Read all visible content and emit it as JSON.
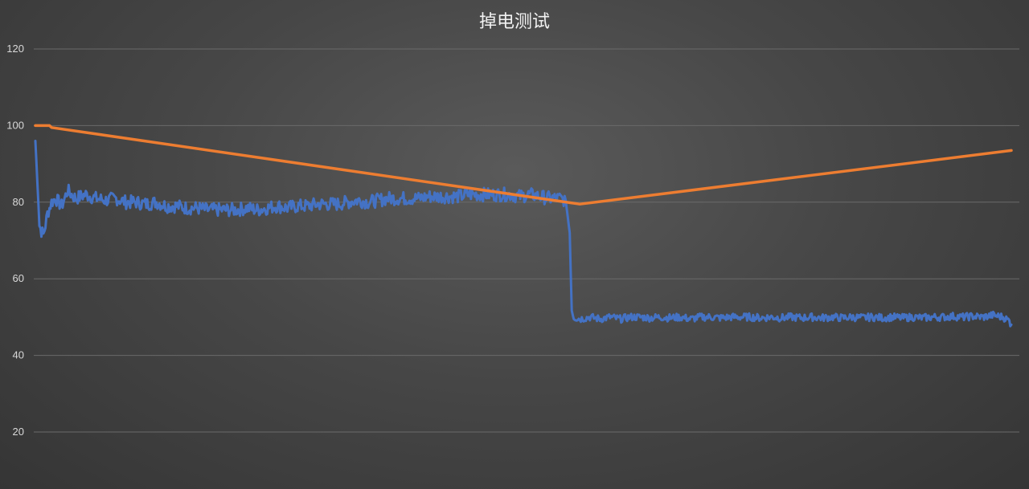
{
  "chart_data": {
    "type": "line",
    "title": "掉电测试",
    "xlabel": "",
    "ylabel": "",
    "ylim": [
      20,
      120
    ],
    "yticks": [
      20,
      40,
      60,
      80,
      100,
      120
    ],
    "grid": true,
    "legend": "none",
    "x_label_note": "no x-axis labels shown",
    "series": [
      {
        "color": "#4472c4",
        "points": [
          [
            0,
            96
          ],
          [
            2,
            74
          ],
          [
            3,
            72.5
          ],
          [
            4,
            71.5
          ],
          [
            5,
            74
          ],
          [
            6,
            77
          ],
          [
            8,
            80
          ],
          [
            10,
            81
          ],
          [
            13,
            79
          ],
          [
            16,
            83
          ],
          [
            20,
            81
          ],
          [
            25,
            82
          ],
          [
            30,
            81
          ],
          [
            35,
            80.5
          ],
          [
            40,
            81
          ],
          [
            45,
            80
          ],
          [
            50,
            80
          ],
          [
            55,
            79.5
          ],
          [
            60,
            80
          ],
          [
            65,
            79
          ],
          [
            70,
            79
          ],
          [
            75,
            78.5
          ],
          [
            80,
            78.5
          ],
          [
            85,
            78
          ],
          [
            90,
            78
          ],
          [
            95,
            78
          ],
          [
            100,
            78
          ],
          [
            105,
            78.5
          ],
          [
            110,
            78
          ],
          [
            115,
            78.5
          ],
          [
            120,
            79
          ],
          [
            125,
            78.5
          ],
          [
            130,
            79
          ],
          [
            135,
            79
          ],
          [
            140,
            79.5
          ],
          [
            145,
            79.5
          ],
          [
            150,
            79.5
          ],
          [
            155,
            80
          ],
          [
            160,
            80.5
          ],
          [
            165,
            80
          ],
          [
            170,
            80.5
          ],
          [
            175,
            81
          ],
          [
            180,
            81
          ],
          [
            185,
            81
          ],
          [
            190,
            81
          ],
          [
            195,
            81.5
          ],
          [
            200,
            81.5
          ],
          [
            205,
            81.5
          ],
          [
            210,
            81.5
          ],
          [
            215,
            82
          ],
          [
            220,
            82
          ],
          [
            225,
            82
          ],
          [
            230,
            82
          ],
          [
            235,
            82
          ],
          [
            240,
            81.5
          ],
          [
            245,
            82
          ],
          [
            250,
            81.5
          ],
          [
            255,
            81
          ],
          [
            260,
            81
          ],
          [
            263,
            80.5
          ],
          [
            265,
            72
          ],
          [
            266,
            52
          ],
          [
            267,
            50
          ],
          [
            270,
            49.5
          ],
          [
            275,
            50
          ],
          [
            280,
            49.5
          ],
          [
            285,
            50
          ],
          [
            290,
            49.5
          ],
          [
            295,
            50
          ],
          [
            300,
            50
          ],
          [
            305,
            49.8
          ],
          [
            310,
            50
          ],
          [
            315,
            49.8
          ],
          [
            320,
            50
          ],
          [
            325,
            49.5
          ],
          [
            330,
            50
          ],
          [
            335,
            50
          ],
          [
            340,
            49.8
          ],
          [
            345,
            50
          ],
          [
            350,
            50
          ],
          [
            355,
            50
          ],
          [
            360,
            49.8
          ],
          [
            365,
            50
          ],
          [
            370,
            49.8
          ],
          [
            375,
            50
          ],
          [
            380,
            49.8
          ],
          [
            385,
            50
          ],
          [
            390,
            49.8
          ],
          [
            395,
            50
          ],
          [
            400,
            49.8
          ],
          [
            405,
            50
          ],
          [
            410,
            49.8
          ],
          [
            415,
            50
          ],
          [
            420,
            49.8
          ],
          [
            425,
            50
          ],
          [
            430,
            49.8
          ],
          [
            435,
            50
          ],
          [
            440,
            49.8
          ],
          [
            445,
            50
          ],
          [
            450,
            50
          ],
          [
            455,
            50.2
          ],
          [
            460,
            50
          ],
          [
            465,
            50.2
          ],
          [
            470,
            50
          ],
          [
            475,
            50.5
          ],
          [
            480,
            50
          ],
          [
            483,
            49
          ],
          [
            484,
            48
          ]
        ]
      },
      {
        "color": "#ed7d31",
        "points": [
          [
            0,
            100
          ],
          [
            7,
            100
          ],
          [
            8,
            99.5
          ],
          [
            270,
            79.5
          ],
          [
            484,
            93.5
          ]
        ]
      }
    ]
  }
}
